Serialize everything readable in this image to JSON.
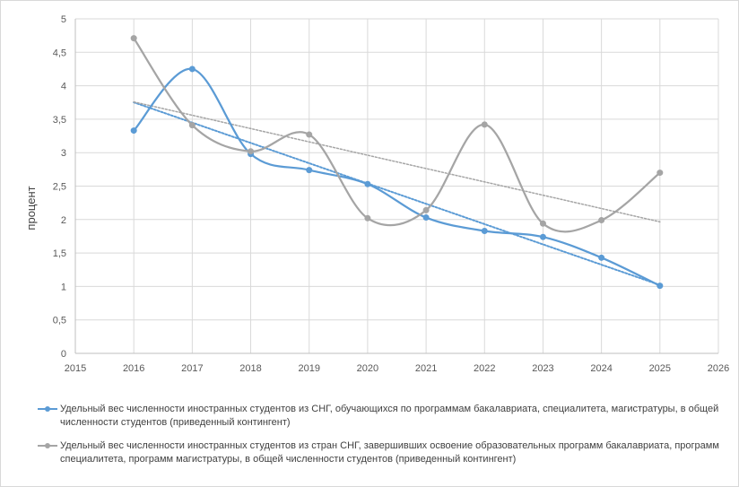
{
  "chart_data": {
    "type": "line",
    "title": "",
    "xlabel": "",
    "ylabel": "процент",
    "xlim": [
      2015,
      2026
    ],
    "ylim": [
      0,
      5
    ],
    "x_ticks": [
      "2015",
      "2016",
      "2017",
      "2018",
      "2019",
      "2020",
      "2021",
      "2022",
      "2023",
      "2024",
      "2025",
      "2026"
    ],
    "y_ticks": [
      "0",
      "0,5",
      "1",
      "1,5",
      "2",
      "2,5",
      "3",
      "3,5",
      "4",
      "4,5",
      "5"
    ],
    "y_tick_values": [
      0,
      0.5,
      1,
      1.5,
      2,
      2.5,
      3,
      3.5,
      4,
      4.5,
      5
    ],
    "grid": true,
    "legend_position": "bottom",
    "series": [
      {
        "name": "Удельный вес численности иностранных студентов из СНГ, обучающихся по программам бакалавриата, специалитета, магистратуры, в общей численности студентов (приведенный контингент)",
        "color": "#5b9bd5",
        "x": [
          2016,
          2017,
          2018,
          2019,
          2020,
          2021,
          2022,
          2023,
          2024,
          2025
        ],
        "y": [
          3.33,
          4.25,
          2.98,
          2.74,
          2.53,
          2.03,
          1.83,
          1.74,
          1.43,
          1.01
        ],
        "smooth": true,
        "trendline": "linear"
      },
      {
        "name": "Удельный вес численности иностранных студентов из стран СНГ, завершивших освоение образовательных программ бакалавриата, программ специалитета, программ магистратуры, в общей численности студентов (приведенный контингент)",
        "color": "#a5a5a5",
        "x": [
          2016,
          2017,
          2018,
          2019,
          2020,
          2021,
          2022,
          2023,
          2024,
          2025
        ],
        "y": [
          4.71,
          3.41,
          3.02,
          3.27,
          2.02,
          2.14,
          3.42,
          1.94,
          1.99,
          2.7
        ],
        "smooth": true,
        "trendline": "linear"
      }
    ]
  }
}
